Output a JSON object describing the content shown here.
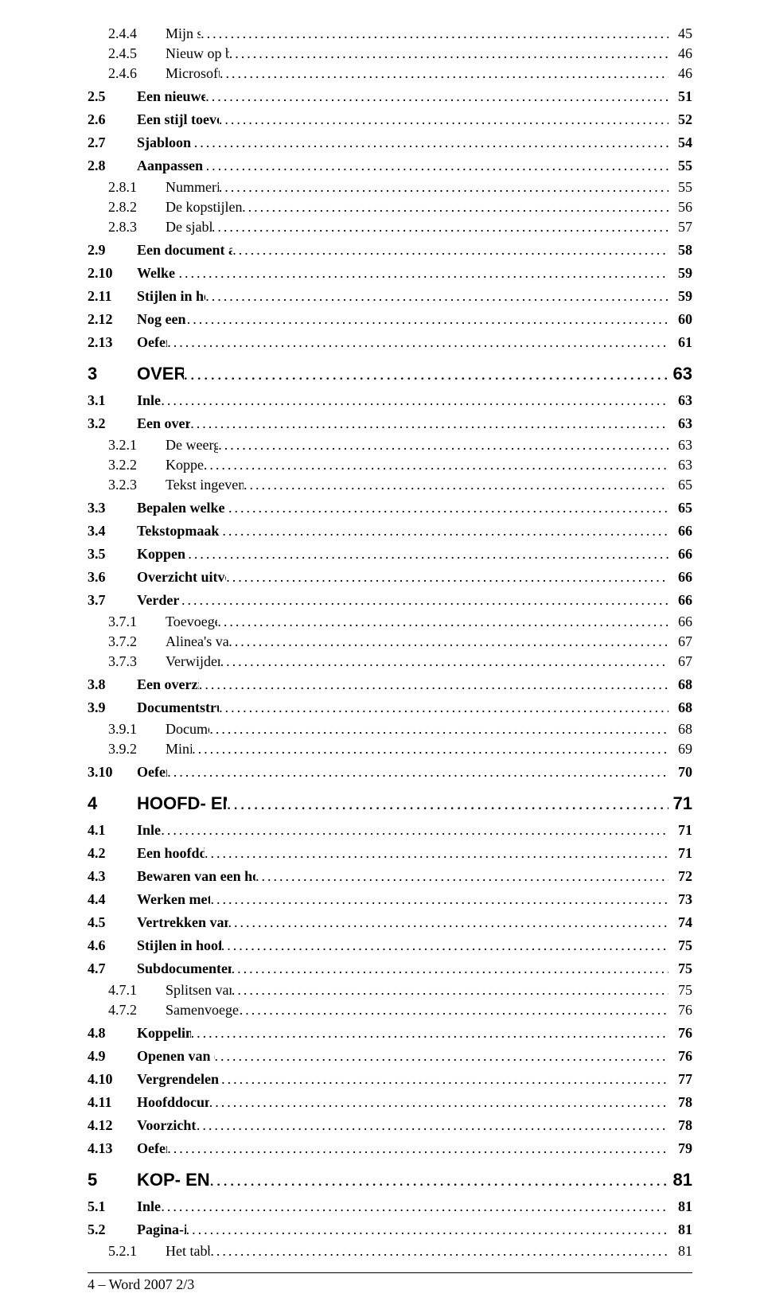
{
  "toc": [
    {
      "level": 3,
      "num": "2.4.4",
      "label": "Mijn sjablonen",
      "page": "45"
    },
    {
      "level": 3,
      "num": "2.4.5",
      "label": "Nieuw op basis van bestaand",
      "page": "46"
    },
    {
      "level": 3,
      "num": "2.4.6",
      "label": "Microsoft Office Online",
      "page": "46"
    },
    {
      "level": 2,
      "num": "2.5",
      "label": "Een nieuwe sjabloon maken",
      "page": "51"
    },
    {
      "level": 2,
      "num": "2.6",
      "label": "Een stijl toevoegen in een sjabloon",
      "page": "52"
    },
    {
      "level": 2,
      "num": "2.7",
      "label": "Sjabloon verwijderen?",
      "page": "54"
    },
    {
      "level": 2,
      "num": "2.8",
      "label": "Aanpassen van een sjabloon",
      "page": "55"
    },
    {
      "level": 3,
      "num": "2.8.1",
      "label": "Nummering in sjabloon",
      "page": "55"
    },
    {
      "level": 3,
      "num": "2.8.2",
      "label": "De kopstijlen individueel aanpassen",
      "page": "56"
    },
    {
      "level": 3,
      "num": "2.8.3",
      "label": "De sjabloon opslaan",
      "page": "57"
    },
    {
      "level": 2,
      "num": "2.9",
      "label": "Een document aan een sjabloon koppelen",
      "page": "58"
    },
    {
      "level": 2,
      "num": "2.10",
      "label": "Welke opmaak?",
      "page": "59"
    },
    {
      "level": 2,
      "num": "2.11",
      "label": "Stijlen in het opmaakgebied",
      "page": "59"
    },
    {
      "level": 2,
      "num": "2.12",
      "label": "Nog een opmerking",
      "page": "60"
    },
    {
      "level": 2,
      "num": "2.13",
      "label": "Oefeningen",
      "page": "61"
    },
    {
      "level": 1,
      "num": "3",
      "label": "OVERZICHTEN",
      "page": "63"
    },
    {
      "level": 2,
      "num": "3.1",
      "label": "Inleiding",
      "page": "63"
    },
    {
      "level": 2,
      "num": "3.2",
      "label": "Een overzicht maken",
      "page": "63"
    },
    {
      "level": 3,
      "num": "3.2.1",
      "label": "De weergave Overzicht",
      "page": "63"
    },
    {
      "level": 3,
      "num": "3.2.2",
      "label": "Koppen ingeven",
      "page": "63"
    },
    {
      "level": 3,
      "num": "3.2.3",
      "label": "Tekst ingeven in overzichtsweergave",
      "page": "65"
    },
    {
      "level": 2,
      "num": "3.3",
      "label": "Bepalen welke niveaus getoond worden",
      "page": "65"
    },
    {
      "level": 2,
      "num": "3.4",
      "label": "Tekstopmaak in overzichtsweergave",
      "page": "66"
    },
    {
      "level": 2,
      "num": "3.5",
      "label": "Koppen verplaatsen",
      "page": "66"
    },
    {
      "level": 2,
      "num": "3.6",
      "label": "Overzicht uitvouwen of samenvouwen",
      "page": "66"
    },
    {
      "level": 2,
      "num": "3.7",
      "label": "Verder bewerken",
      "page": "66"
    },
    {
      "level": 3,
      "num": "3.7.1",
      "label": "Toevoegen van alinea's",
      "page": "66"
    },
    {
      "level": 3,
      "num": "3.7.2",
      "label": "Alinea's van niveau wijzigen",
      "page": "67"
    },
    {
      "level": 3,
      "num": "3.7.3",
      "label": "Verwijderen van alinea's",
      "page": "67"
    },
    {
      "level": 2,
      "num": "3.8",
      "label": "Een overzicht afdrukken",
      "page": "68"
    },
    {
      "level": 2,
      "num": "3.9",
      "label": "Documentstructuur en miniaturen",
      "page": "68"
    },
    {
      "level": 3,
      "num": "3.9.1",
      "label": "Documentstructuur",
      "page": "68"
    },
    {
      "level": 3,
      "num": "3.9.2",
      "label": "Miniaturen",
      "page": "69"
    },
    {
      "level": 2,
      "num": "3.10",
      "label": "Oefeningen",
      "page": "70"
    },
    {
      "level": 1,
      "num": "4",
      "label": "HOOFD- EN SUBDOCUMENTEN",
      "page": "71"
    },
    {
      "level": 2,
      "num": "4.1",
      "label": "Inleiding",
      "page": "71"
    },
    {
      "level": 2,
      "num": "4.2",
      "label": "Een hoofddocument maken",
      "page": "71"
    },
    {
      "level": 2,
      "num": "4.3",
      "label": "Bewaren van een hoofdocument en de subdocumenten",
      "page": "72"
    },
    {
      "level": 2,
      "num": "4.4",
      "label": "Werken met een subdocument",
      "page": "73"
    },
    {
      "level": 2,
      "num": "4.5",
      "label": "Vertrekken van bestaande documenten",
      "page": "74"
    },
    {
      "level": 2,
      "num": "4.6",
      "label": "Stijlen in hoofd- en subdocumenten",
      "page": "75"
    },
    {
      "level": 2,
      "num": "4.7",
      "label": "Subdocumenten splitsen of samenvoegen",
      "page": "75"
    },
    {
      "level": 3,
      "num": "4.7.1",
      "label": "Splitsen van een subdocument",
      "page": "75"
    },
    {
      "level": 3,
      "num": "4.7.2",
      "label": "Samenvoegen van subdocumenten",
      "page": "76"
    },
    {
      "level": 2,
      "num": "4.8",
      "label": "Koppeling verbreken",
      "page": "76"
    },
    {
      "level": 2,
      "num": "4.9",
      "label": "Openen van een hoofddocument",
      "page": "76"
    },
    {
      "level": 2,
      "num": "4.10",
      "label": "Vergrendelen van een subdocument",
      "page": "77"
    },
    {
      "level": 2,
      "num": "4.11",
      "label": "Hoofddocumenten afdrukken",
      "page": "78"
    },
    {
      "level": 2,
      "num": "4.12",
      "label": "Voorzichtigheid is de …",
      "page": "78"
    },
    {
      "level": 2,
      "num": "4.13",
      "label": "Oefeningen",
      "page": "79"
    },
    {
      "level": 1,
      "num": "5",
      "label": "KOP- EN VOETTEKSTEN",
      "page": "81"
    },
    {
      "level": 2,
      "num": "5.1",
      "label": "Inleiding",
      "page": "81"
    },
    {
      "level": 2,
      "num": "5.2",
      "label": "Pagina-instellingen",
      "page": "81"
    },
    {
      "level": 3,
      "num": "5.2.1",
      "label": "Het tabblad Marges",
      "page": "81"
    }
  ],
  "footer": "4 – Word 2007 2/3"
}
